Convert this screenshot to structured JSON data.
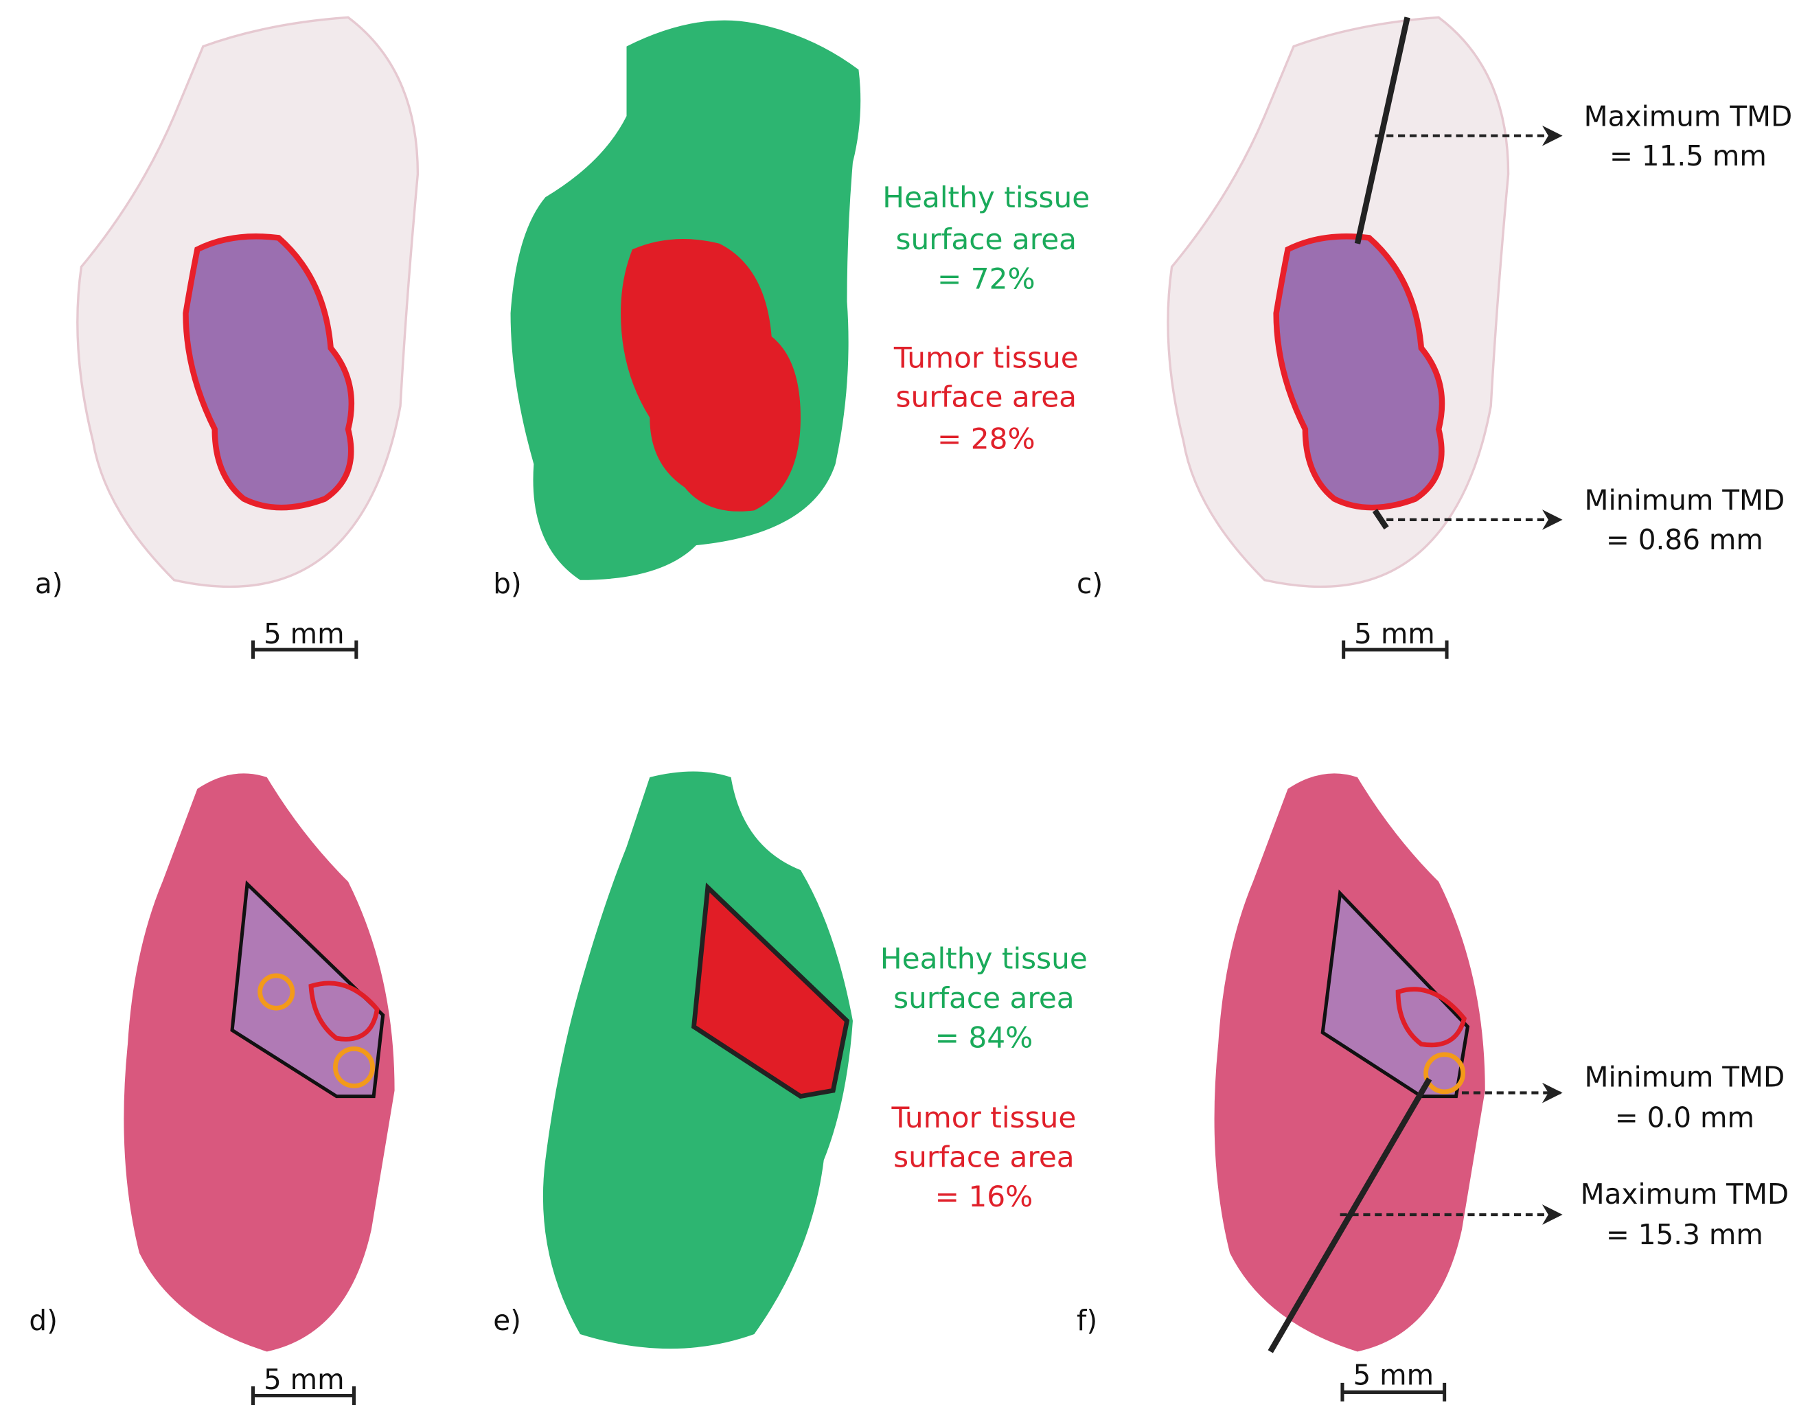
{
  "panels": [
    {
      "label": "a)",
      "scale_bar": "5 mm"
    },
    {
      "label": "b)",
      "healthy": [
        "Healthy tissue",
        "surface area",
        "= 72%"
      ],
      "tumor": [
        "Tumor tissue",
        "surface area",
        "= 28%"
      ]
    },
    {
      "label": "c)",
      "scale_bar": "5 mm",
      "measurements": [
        [
          "Maximum TMD",
          "= 11.5 mm"
        ],
        [
          "Minimum TMD",
          "= 0.86 mm"
        ]
      ]
    },
    {
      "label": "d)",
      "scale_bar": "5 mm"
    },
    {
      "label": "e)",
      "healthy": [
        "Healthy tissue",
        "surface area",
        "= 84%"
      ],
      "tumor": [
        "Tumor tissue",
        "surface area",
        "= 16%"
      ]
    },
    {
      "label": "f)",
      "scale_bar": "5 mm",
      "measurements": [
        [
          "Minimum TMD",
          "= 0.0 mm"
        ],
        [
          "Maximum TMD",
          "= 15.3 mm"
        ]
      ]
    }
  ]
}
